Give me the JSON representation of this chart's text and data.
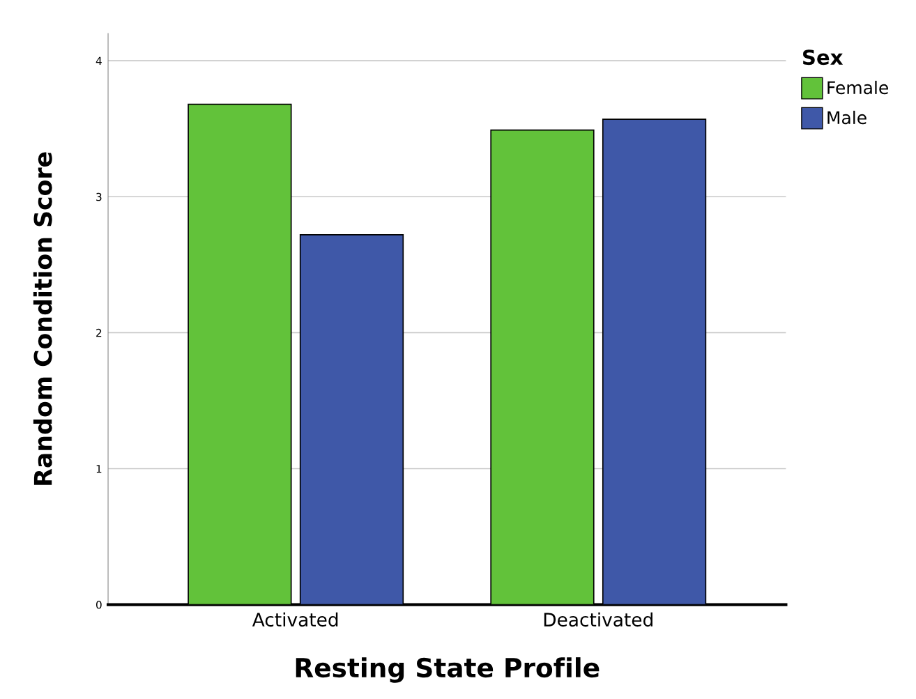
{
  "chart_data": {
    "type": "bar",
    "xlabel": "Resting State Profile",
    "ylabel": "Random Condition Score",
    "legend_title": "Sex",
    "categories": [
      "Activated",
      "Deactivated"
    ],
    "series": [
      {
        "name": "Female",
        "color": "#62c23a",
        "values": [
          3.68,
          3.49
        ]
      },
      {
        "name": "Male",
        "color": "#3f58a8",
        "values": [
          2.72,
          3.57
        ]
      }
    ],
    "ylim": [
      0,
      4.2
    ],
    "yticks": [
      0,
      1,
      2,
      3,
      4
    ],
    "grid": "y",
    "legend": "top right"
  }
}
